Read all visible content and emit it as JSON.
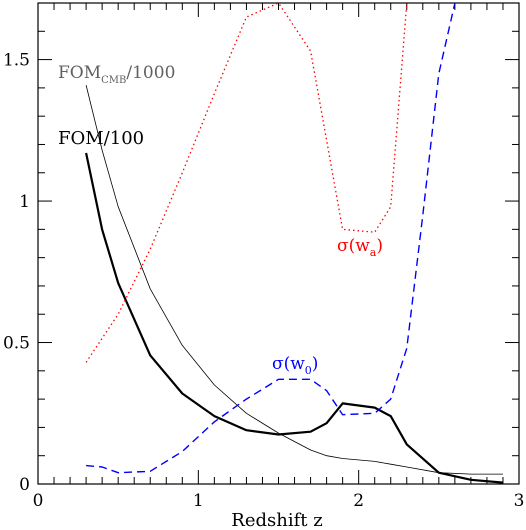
{
  "chart_data": {
    "type": "line",
    "title": "",
    "xlabel": "Redshift z",
    "ylabel": "",
    "xlim": [
      0,
      3
    ],
    "ylim": [
      0,
      1.7
    ],
    "xticks": [
      "0",
      "1",
      "2",
      "3"
    ],
    "xtick_values": [
      0,
      1,
      2,
      3
    ],
    "yticks": [
      "0",
      "0.5",
      "1",
      "1.5"
    ],
    "ytick_values": [
      0,
      0.5,
      1,
      1.5
    ],
    "grid": false,
    "legend": "none",
    "series": [
      {
        "key": "fom_cmb",
        "color": "#000000",
        "style": "thin-solid",
        "x": [
          0.3,
          0.4,
          0.5,
          0.7,
          0.9,
          1.1,
          1.3,
          1.5,
          1.7,
          1.8,
          1.9,
          2.1,
          2.2,
          2.3,
          2.5,
          2.7,
          2.9
        ],
        "y": [
          1.41,
          1.18,
          0.98,
          0.69,
          0.49,
          0.35,
          0.25,
          0.18,
          0.12,
          0.1,
          0.09,
          0.08,
          0.07,
          0.06,
          0.04,
          0.035,
          0.035
        ]
      },
      {
        "key": "fom",
        "color": "#000000",
        "style": "thick-solid",
        "x": [
          0.3,
          0.4,
          0.5,
          0.7,
          0.9,
          1.1,
          1.3,
          1.5,
          1.7,
          1.8,
          1.9,
          2.1,
          2.2,
          2.3,
          2.5,
          2.7,
          2.9
        ],
        "y": [
          1.17,
          0.9,
          0.71,
          0.455,
          0.32,
          0.24,
          0.19,
          0.175,
          0.185,
          0.215,
          0.285,
          0.27,
          0.24,
          0.14,
          0.04,
          0.015,
          0.005
        ]
      },
      {
        "key": "sigma_wa",
        "color": "#ff0000",
        "style": "dotted",
        "x": [
          0.3,
          0.5,
          0.7,
          0.9,
          1.1,
          1.3,
          1.5,
          1.7,
          1.9,
          2.1,
          2.2,
          2.3
        ],
        "y": [
          0.43,
          0.6,
          0.83,
          1.1,
          1.38,
          1.65,
          1.7,
          1.53,
          0.9,
          0.89,
          0.98,
          1.7
        ]
      },
      {
        "key": "sigma_w0",
        "color": "#0000ff",
        "style": "dashed",
        "x": [
          0.3,
          0.4,
          0.5,
          0.7,
          0.9,
          1.1,
          1.3,
          1.5,
          1.7,
          1.8,
          1.9,
          2.1,
          2.2,
          2.3,
          2.4,
          2.5,
          2.6
        ],
        "y": [
          0.065,
          0.06,
          0.04,
          0.045,
          0.115,
          0.22,
          0.3,
          0.37,
          0.37,
          0.33,
          0.245,
          0.25,
          0.3,
          0.48,
          0.95,
          1.45,
          1.7
        ]
      }
    ],
    "annotations": {
      "fom_cmb_main": "FOM",
      "fom_cmb_sub": "CMB",
      "fom_cmb_tail": "/1000",
      "fom": "FOM/100",
      "sigma_wa_main": "σ(w",
      "sigma_wa_sub": "a",
      "sigma_wa_tail": ")",
      "sigma_w0_main": "σ(w",
      "sigma_w0_sub": "0",
      "sigma_w0_tail": ")"
    }
  }
}
